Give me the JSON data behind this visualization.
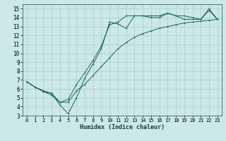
{
  "xlabel": "Humidex (Indice chaleur)",
  "xlim": [
    -0.5,
    23.5
  ],
  "ylim": [
    3,
    15.5
  ],
  "yticks": [
    3,
    4,
    5,
    6,
    7,
    8,
    9,
    10,
    11,
    12,
    13,
    14,
    15
  ],
  "xticks": [
    0,
    1,
    2,
    3,
    4,
    5,
    6,
    7,
    8,
    9,
    10,
    11,
    12,
    13,
    14,
    15,
    16,
    17,
    18,
    19,
    20,
    21,
    22,
    23
  ],
  "bg_color": "#cce8e8",
  "grid_color": "#aacccc",
  "line_color": "#1a6655",
  "line1_y": [
    6.8,
    6.2,
    5.7,
    5.3,
    4.5,
    4.5,
    5.8,
    6.5,
    7.5,
    8.5,
    9.5,
    10.5,
    11.2,
    11.8,
    12.2,
    12.5,
    12.8,
    13.0,
    13.2,
    13.4,
    13.5,
    13.6,
    13.7,
    13.8
  ],
  "line2_y": [
    6.8,
    6.2,
    5.7,
    5.5,
    4.2,
    3.2,
    5.0,
    7.2,
    8.8,
    10.5,
    13.5,
    13.3,
    12.8,
    14.2,
    14.2,
    14.2,
    14.2,
    14.5,
    14.2,
    14.2,
    14.0,
    13.8,
    15.0,
    13.8
  ],
  "line3_y": [
    6.8,
    6.2,
    5.8,
    5.5,
    4.5,
    4.8,
    6.5,
    7.8,
    9.2,
    10.8,
    13.2,
    13.5,
    14.2,
    14.2,
    14.2,
    14.0,
    14.0,
    14.5,
    14.2,
    13.8,
    13.8,
    13.8,
    14.8,
    13.8
  ]
}
